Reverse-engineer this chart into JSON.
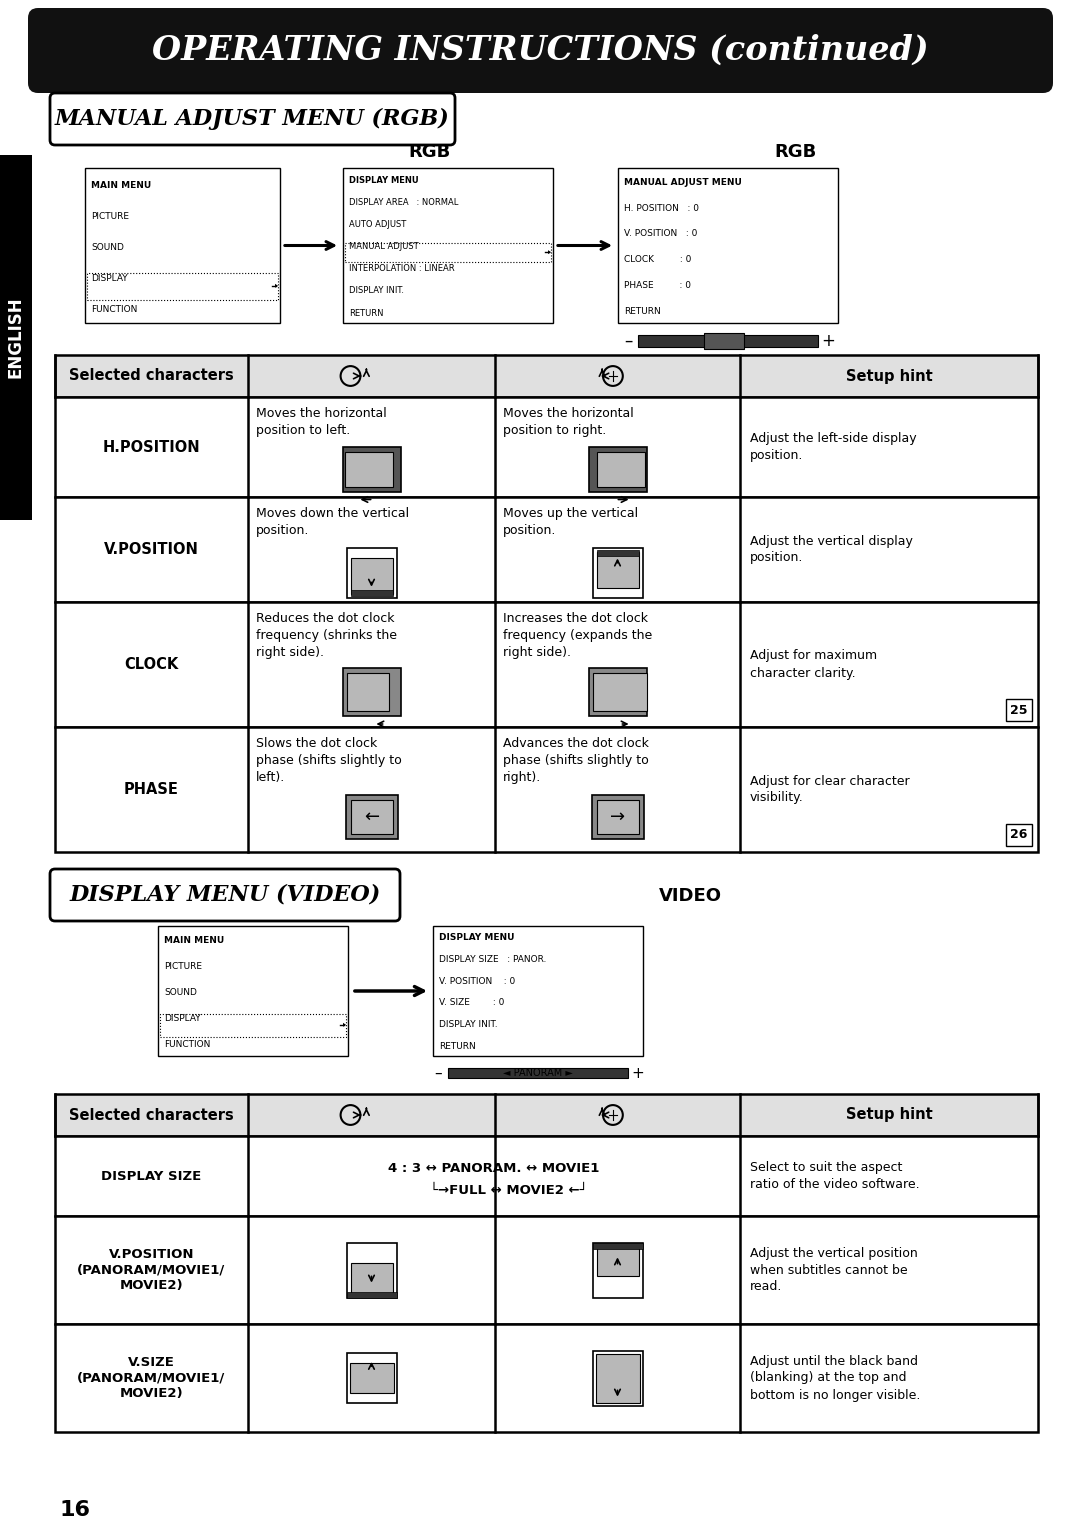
{
  "title": "OPERATING INSTRUCTIONS (continued)",
  "section1_title": "MANUAL ADJUST MENU (RGB)",
  "section2_title": "DISPLAY MENU (VIDEO)",
  "rgb_label": "RGB",
  "video_label": "VIDEO",
  "page_number": "16",
  "english_label": "ENGLISH",
  "main_menu_rgb": [
    "MAIN MENU",
    "PICTURE",
    "SOUND",
    "DISPLAY",
    "FUNCTION"
  ],
  "display_menu_rgb": [
    "DISPLAY MENU",
    "DISPLAY AREA   : NORMAL",
    "AUTO ADJUST",
    "MANUAL ADJUST",
    "INTERPOLATION : LINEAR",
    "DISPLAY INIT.",
    "RETURN"
  ],
  "manual_adjust_menu": [
    "MANUAL ADJUST MENU",
    "H. POSITION   : 0",
    "V. POSITION   : 0",
    "CLOCK         : 0",
    "PHASE         : 0",
    "RETURN"
  ],
  "main_menu_video": [
    "MAIN MENU",
    "PICTURE",
    "SOUND",
    "DISPLAY",
    "FUNCTION"
  ],
  "display_menu_video": [
    "DISPLAY MENU",
    "DISPLAY SIZE   : PANOR.",
    "V. POSITION    : 0",
    "V. SIZE        : 0",
    "DISPLAY INIT.",
    "RETURN"
  ],
  "rgb_rows": [
    {
      "label": "H.POSITION",
      "left_text": "Moves the horizontal\nposition to left.",
      "right_text": "Moves the horizontal\nposition to right.",
      "hint": "Adjust the left-side display\nposition.",
      "screen_type": "h"
    },
    {
      "label": "V.POSITION",
      "left_text": "Moves down the vertical\nposition.",
      "right_text": "Moves up the vertical\nposition.",
      "hint": "Adjust the vertical display\nposition.",
      "screen_type": "v"
    },
    {
      "label": "CLOCK",
      "left_text": "Reduces the dot clock\nfrequency (shrinks the\nright side).",
      "right_text": "Increases the dot clock\nfrequency (expands the\nright side).",
      "hint": "Adjust for maximum\ncharacter clarity.",
      "note": "25",
      "screen_type": "clock"
    },
    {
      "label": "PHASE",
      "left_text": "Slows the dot clock\nphase (shifts slightly to\nleft).",
      "right_text": "Advances the dot clock\nphase (shifts slightly to\nright).",
      "hint": "Adjust for clear character\nvisibility.",
      "note": "26",
      "screen_type": "phase"
    }
  ],
  "video_rows": [
    {
      "label": "DISPLAY SIZE",
      "hint": "Select to suit the aspect\nratio of the video software.",
      "screen_type": "display_size"
    },
    {
      "label": "V.POSITION\n(PANORAM/MOVIE1/\nMOVIE2)",
      "hint": "Adjust the vertical position\nwhen subtitles cannot be\nread.",
      "screen_type": "v_pos"
    },
    {
      "label": "V.SIZE\n(PANORAM/MOVIE1/\nMOVIE2)",
      "hint": "Adjust until the black band\n(blanking) at the top and\nbottom is no longer visible.",
      "screen_type": "v_size"
    }
  ]
}
